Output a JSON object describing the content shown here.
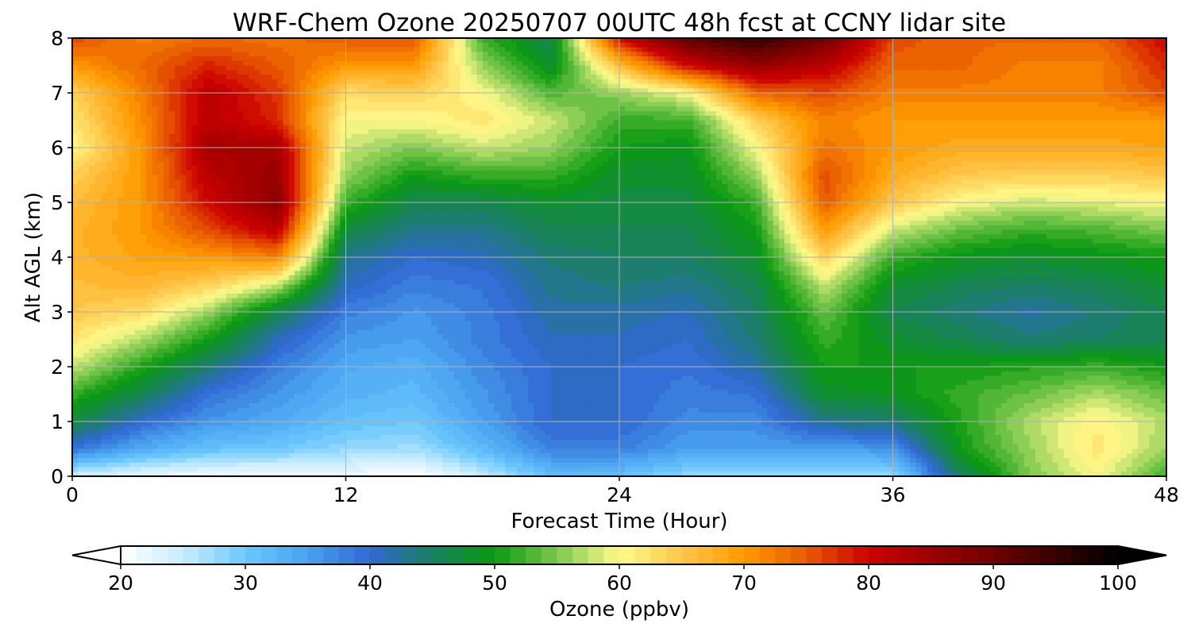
{
  "chart_data": {
    "type": "heatmap",
    "title": "WRF-Chem Ozone  20250707 00UTC 48h fcst at CCNY lidar site",
    "xlabel": "Forecast Time (Hour)",
    "ylabel": "Alt AGL (km)",
    "xlim": [
      0,
      48
    ],
    "ylim": [
      0,
      8
    ],
    "x_ticks": [
      "0",
      "12",
      "24",
      "36",
      "48"
    ],
    "y_ticks": [
      "0",
      "1",
      "2",
      "3",
      "4",
      "5",
      "6",
      "7",
      "8"
    ],
    "grid": true,
    "z_units_label": "Ozone  (ppbv)",
    "colorbar": {
      "range": [
        20,
        100
      ],
      "ticks": [
        "20",
        "30",
        "40",
        "50",
        "60",
        "70",
        "80",
        "90",
        "100"
      ],
      "extend": "both",
      "orientation": "horizontal",
      "stops": [
        {
          "v": 20,
          "c": "#ffffff"
        },
        {
          "v": 25,
          "c": "#c8ecff"
        },
        {
          "v": 30,
          "c": "#6cc8ff"
        },
        {
          "v": 35,
          "c": "#4aa2f0"
        },
        {
          "v": 40,
          "c": "#3068d2"
        },
        {
          "v": 45,
          "c": "#1a8060"
        },
        {
          "v": 50,
          "c": "#0b9a10"
        },
        {
          "v": 55,
          "c": "#7cc84e"
        },
        {
          "v": 60,
          "c": "#fffa8c"
        },
        {
          "v": 65,
          "c": "#ffc64a"
        },
        {
          "v": 70,
          "c": "#ff9a00"
        },
        {
          "v": 75,
          "c": "#e85a00"
        },
        {
          "v": 80,
          "c": "#cc0000"
        },
        {
          "v": 90,
          "c": "#700000"
        },
        {
          "v": 100,
          "c": "#000000"
        }
      ]
    },
    "x_nodes": [
      0,
      3,
      6,
      9,
      12,
      15,
      18,
      21,
      24,
      27,
      30,
      33,
      36,
      39,
      42,
      45,
      48
    ],
    "y_nodes": [
      0,
      0.5,
      1,
      1.5,
      2,
      2.5,
      3,
      3.5,
      4,
      4.5,
      5,
      5.5,
      6,
      6.5,
      7,
      7.5,
      8
    ],
    "z": [
      [
        24,
        22,
        21,
        21,
        21,
        20,
        25,
        31,
        31,
        28,
        27,
        27,
        28,
        45,
        55,
        60,
        52
      ],
      [
        39,
        34,
        31,
        30,
        28,
        27,
        32,
        38,
        38,
        35,
        35,
        35,
        36,
        50,
        56,
        62,
        56
      ],
      [
        47,
        40,
        36,
        34,
        31,
        30,
        35,
        40,
        40,
        37,
        37,
        43,
        44,
        51,
        57,
        61,
        57
      ],
      [
        52,
        46,
        39,
        36,
        33,
        32,
        36,
        40,
        40,
        38,
        39,
        48,
        49,
        52,
        54,
        57,
        54
      ],
      [
        58,
        51,
        44,
        38,
        34,
        33,
        37,
        40,
        40,
        39,
        42,
        50,
        50,
        50,
        51,
        52,
        50
      ],
      [
        62,
        57,
        50,
        41,
        36,
        35,
        38,
        41,
        41,
        40,
        44,
        52,
        48,
        46,
        44,
        45,
        46
      ],
      [
        65,
        63,
        56,
        46,
        38,
        36,
        38,
        42,
        42,
        41,
        45,
        54,
        46,
        44,
        42,
        44,
        46
      ],
      [
        66,
        67,
        64,
        58,
        41,
        38,
        39,
        43,
        44,
        43,
        46,
        58,
        48,
        46,
        45,
        46,
        48
      ],
      [
        67,
        69,
        70,
        72,
        43,
        40,
        41,
        44,
        45,
        45,
        48,
        64,
        52,
        49,
        48,
        49,
        50
      ],
      [
        67,
        70,
        76,
        82,
        47,
        43,
        43,
        46,
        46,
        46,
        50,
        70,
        58,
        54,
        52,
        53,
        55
      ],
      [
        66,
        70,
        80,
        87,
        52,
        46,
        46,
        48,
        47,
        47,
        52,
        75,
        65,
        60,
        58,
        59,
        60
      ],
      [
        64,
        70,
        82,
        86,
        56,
        50,
        52,
        52,
        48,
        48,
        56,
        76,
        68,
        65,
        64,
        64,
        65
      ],
      [
        60,
        70,
        84,
        84,
        58,
        55,
        58,
        56,
        50,
        49,
        60,
        73,
        70,
        68,
        68,
        68,
        69
      ],
      [
        62,
        71,
        82,
        78,
        60,
        60,
        62,
        58,
        52,
        52,
        64,
        72,
        70,
        70,
        70,
        70,
        70
      ],
      [
        64,
        72,
        82,
        77,
        63,
        64,
        60,
        53,
        56,
        60,
        74,
        76,
        72,
        72,
        72,
        72,
        76
      ],
      [
        70,
        74,
        78,
        75,
        70,
        70,
        56,
        48,
        66,
        80,
        86,
        82,
        74,
        74,
        72,
        72,
        78
      ],
      [
        76,
        72,
        74,
        73,
        75,
        75,
        52,
        46,
        80,
        92,
        96,
        90,
        76,
        74,
        74,
        74,
        80
      ]
    ]
  }
}
